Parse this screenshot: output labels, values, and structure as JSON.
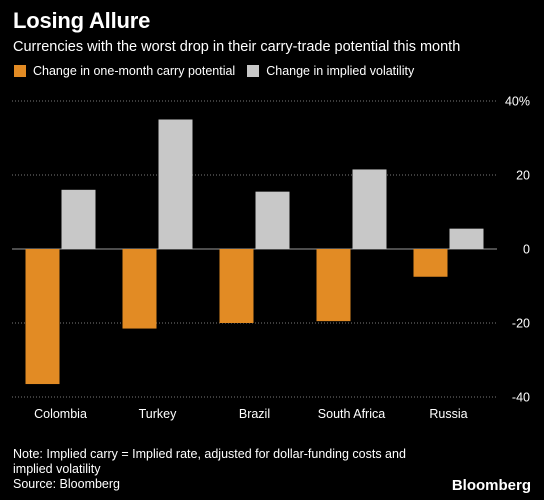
{
  "colors": {
    "series1": "#e28b24",
    "series2": "#c8c8c8",
    "grid": "#7a7a7a",
    "background": "#000000"
  },
  "chart_data": {
    "type": "bar",
    "title": "Losing Allure",
    "subtitle": "Currencies with the worst drop in their carry-trade potential this month",
    "categories": [
      "Colombia",
      "Turkey",
      "Brazil",
      "South Africa",
      "Russia"
    ],
    "series": [
      {
        "name": "Change in one-month carry potential",
        "values": [
          -36.5,
          -21.5,
          -20,
          -19.5,
          -7.5
        ]
      },
      {
        "name": "Change in implied volatility",
        "values": [
          16,
          35,
          15.5,
          21.5,
          5.5
        ]
      }
    ],
    "ylim": [
      -40,
      40
    ],
    "yticks": [
      40,
      20,
      0,
      -20,
      -40
    ],
    "ytick_labels": [
      "40%",
      "20",
      "0",
      "-20",
      "-40"
    ],
    "grid": true,
    "legend_position": "top-left"
  },
  "note": {
    "line1": "Note: Implied carry = Implied rate, adjusted for dollar-funding costs and",
    "line2": "implied volatility",
    "source": "Source: Bloomberg"
  },
  "brand": "Bloomberg"
}
